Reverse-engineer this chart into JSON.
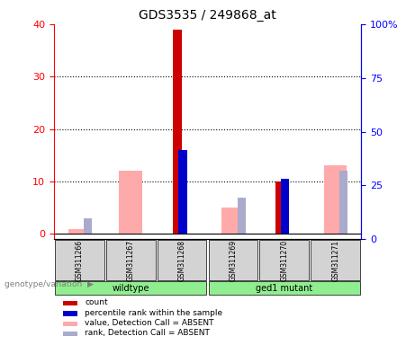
{
  "title": "GDS3535 / 249868_at",
  "samples": [
    "GSM311266",
    "GSM311267",
    "GSM311268",
    "GSM311269",
    "GSM311270",
    "GSM311271"
  ],
  "count_values": [
    0,
    0,
    39,
    0,
    10,
    0
  ],
  "percentile_rank_values": [
    0,
    0,
    16,
    0,
    10.5,
    0
  ],
  "absent_value_values": [
    1,
    12,
    0,
    5,
    0,
    13
  ],
  "absent_rank_values": [
    3,
    0,
    0,
    7,
    0,
    12
  ],
  "ylim_left": [
    -1,
    40
  ],
  "ylim_right": [
    0,
    100
  ],
  "yticks_left": [
    0,
    10,
    20,
    30,
    40
  ],
  "yticks_right": [
    0,
    25,
    50,
    75,
    100
  ],
  "yticklabels_left": [
    "0",
    "10",
    "20",
    "30",
    "40"
  ],
  "yticklabels_right": [
    "0",
    "25",
    "50",
    "75",
    "100%"
  ],
  "color_count": "#cc0000",
  "color_percentile": "#0000cc",
  "color_absent_value": "#ffaaaa",
  "color_absent_rank": "#aaaacc",
  "bar_width": 0.18,
  "legend_items": [
    {
      "label": "count",
      "color": "#cc0000"
    },
    {
      "label": "percentile rank within the sample",
      "color": "#0000cc"
    },
    {
      "label": "value, Detection Call = ABSENT",
      "color": "#ffaaaa"
    },
    {
      "label": "rank, Detection Call = ABSENT",
      "color": "#aaaacc"
    }
  ],
  "genotype_label": "genotype/variation",
  "wt_label": "wildtype",
  "mut_label": "ged1 mutant"
}
